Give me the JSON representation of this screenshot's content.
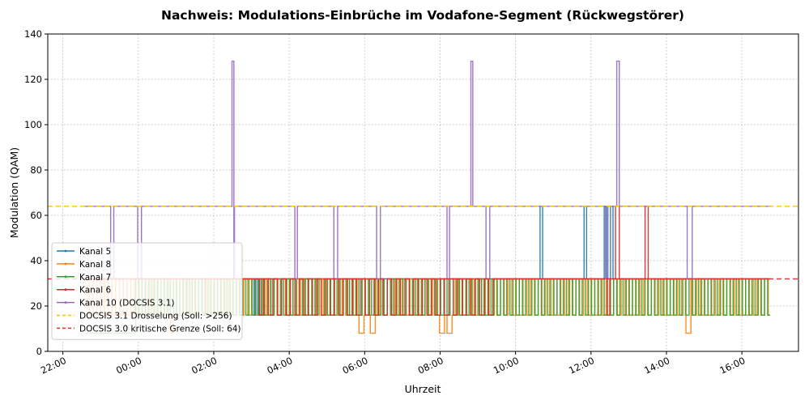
{
  "chart_data": {
    "type": "line",
    "title": "Nachweis: Modulations-Einbrüche im Vodafone-Segment (Rückwegstörer)",
    "xlabel": "Uhrzeit",
    "ylabel": "Modulation (QAM)",
    "xlim_hours": [
      21.6,
      41.5
    ],
    "ylim": [
      0,
      140
    ],
    "xticks": [
      {
        "hour": 22,
        "label": "22:00"
      },
      {
        "hour": 24,
        "label": "00:00"
      },
      {
        "hour": 26,
        "label": "02:00"
      },
      {
        "hour": 28,
        "label": "04:00"
      },
      {
        "hour": 30,
        "label": "06:00"
      },
      {
        "hour": 32,
        "label": "08:00"
      },
      {
        "hour": 34,
        "label": "10:00"
      },
      {
        "hour": 36,
        "label": "12:00"
      },
      {
        "hour": 38,
        "label": "14:00"
      },
      {
        "hour": 40,
        "label": "16:00"
      }
    ],
    "yticks": [
      0,
      20,
      40,
      60,
      80,
      100,
      120,
      140
    ],
    "grid": true,
    "legend_position": "center-left",
    "time_range": {
      "start": "22:35",
      "end": "16:45"
    },
    "series": [
      {
        "name": "Kanal 5",
        "color": "#1f77b4",
        "base": 32,
        "dips": [],
        "spikes": [
          {
            "start": "10:38",
            "end": "10:42",
            "value": 64
          },
          {
            "start": "11:48",
            "end": "11:52",
            "value": 64
          },
          {
            "start": "12:20",
            "end": "12:24",
            "value": 64
          },
          {
            "start": "12:30",
            "end": "12:34",
            "value": 64
          }
        ],
        "oscillation": {
          "start": "03:00",
          "end": "03:20",
          "low": 16,
          "high": 32,
          "period_minutes": 6
        }
      },
      {
        "name": "Kanal 8",
        "color": "#ff7f0e",
        "base": 16,
        "dips": [
          {
            "start": "00:50",
            "end": "00:55",
            "value": 8
          },
          {
            "start": "05:50",
            "end": "05:58",
            "value": 8
          },
          {
            "start": "06:08",
            "end": "06:16",
            "value": 8
          },
          {
            "start": "07:58",
            "end": "08:06",
            "value": 8
          },
          {
            "start": "08:10",
            "end": "08:18",
            "value": 8
          },
          {
            "start": "14:30",
            "end": "14:38",
            "value": 8
          }
        ],
        "spikes": [],
        "oscillation": {
          "start": "22:35",
          "end": "16:45",
          "low": 16,
          "high": 32,
          "period_minutes": 12
        }
      },
      {
        "name": "Kanal 7",
        "color": "#2ca02c",
        "base": 16,
        "dips": [
          {
            "start": "22:35",
            "end": "23:55",
            "value": 8
          }
        ],
        "spikes": [],
        "oscillation": {
          "start": "22:35",
          "end": "16:45",
          "low": 16,
          "high": 32,
          "period_minutes": 10
        }
      },
      {
        "name": "Kanal 6",
        "color": "#d62728",
        "base": 32,
        "dips": [
          {
            "start": "12:25",
            "end": "12:29",
            "value": 16
          }
        ],
        "spikes": [
          {
            "start": "12:38",
            "end": "12:44",
            "value": 64
          },
          {
            "start": "13:25",
            "end": "13:30",
            "value": 64
          }
        ],
        "oscillation": {
          "start": "03:05",
          "end": "09:30",
          "low": 16,
          "high": 32,
          "period_minutes": 14
        }
      },
      {
        "name": "Kanal 10 (DOCSIS 3.1)",
        "color": "#9467bd",
        "base": 64,
        "dips": [
          {
            "start": "23:15",
            "end": "23:20",
            "value": 32
          },
          {
            "start": "23:58",
            "end": "00:04",
            "value": 32
          },
          {
            "start": "02:28",
            "end": "02:32",
            "value": 32
          },
          {
            "start": "04:08",
            "end": "04:12",
            "value": 32
          },
          {
            "start": "05:10",
            "end": "05:16",
            "value": 32
          },
          {
            "start": "06:18",
            "end": "06:24",
            "value": 32
          },
          {
            "start": "08:10",
            "end": "08:14",
            "value": 32
          },
          {
            "start": "09:12",
            "end": "09:18",
            "value": 32
          },
          {
            "start": "12:22",
            "end": "12:26",
            "value": 32
          },
          {
            "start": "14:32",
            "end": "14:40",
            "value": 32
          }
        ],
        "spikes": [
          {
            "start": "02:28",
            "end": "02:31",
            "value": 128
          },
          {
            "start": "08:48",
            "end": "08:51",
            "value": 128
          },
          {
            "start": "12:40",
            "end": "12:44",
            "value": 128
          }
        ]
      }
    ],
    "reference_lines": [
      {
        "name": "DOCSIS 3.1 Drosselung (Soll: >256)",
        "value": 64,
        "color": "#ffbf00"
      },
      {
        "name": "DOCSIS 3.0 kritische Grenze (Soll: 64)",
        "value": 32,
        "color": "#e03030"
      }
    ]
  }
}
